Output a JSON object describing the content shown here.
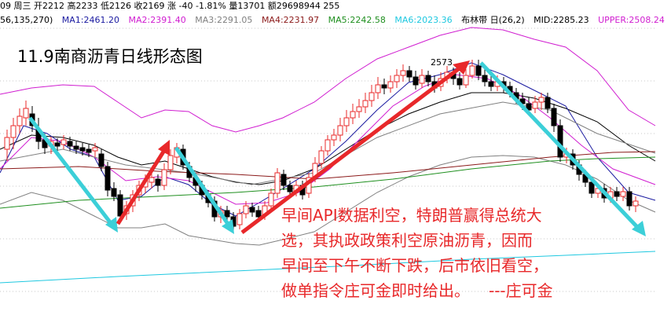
{
  "quote": {
    "date": "09 周三",
    "open": "开2212",
    "high": "高2233",
    "low": "低2126",
    "close": "收2169",
    "change": "涨 -40",
    "change_pct": "-1.81%",
    "volume": "量13701",
    "amount": "额29698944",
    "extra": "255"
  },
  "indicators": {
    "params": "56,135,270)",
    "ma1": {
      "label": "MA1:2461.20",
      "color": "#1a1aa0"
    },
    "ma2": {
      "label": "MA2:2391.40",
      "color": "#d01dd0"
    },
    "ma3": {
      "label": "MA3:2291.05",
      "color": "#808080"
    },
    "ma4": {
      "label": "MA4:2231.97",
      "color": "#8b1a1a"
    },
    "ma5": {
      "label": "MA5:2242.58",
      "color": "#1f8f1f"
    },
    "ma6": {
      "label": "MA6:2023.36",
      "color": "#1ec8e0"
    },
    "boll": {
      "label": "布林带 日(26,2)",
      "color": "#000000"
    },
    "mid": {
      "label": "MID:2285.23",
      "color": "#000000"
    },
    "upper": {
      "label": "UPPER:2508.24",
      "color": "#d01dd0"
    }
  },
  "title": "11.9南商沥青日线形态图",
  "peak_label": "2573",
  "annotation": {
    "line1": "早间API数据利空，特朗普赢得总统大",
    "line2": "选，其执政政策利空原油沥青，因而",
    "line3": "早间至下午不断下跌，后市依旧看空，",
    "line4": "做单指令庄可金即时给出。",
    "signature": "---庄可金"
  },
  "colors": {
    "up": "#e8282a",
    "down": "#000000",
    "arrow_down": "#3ccfd8",
    "arrow_up": "#e8282a"
  }
}
